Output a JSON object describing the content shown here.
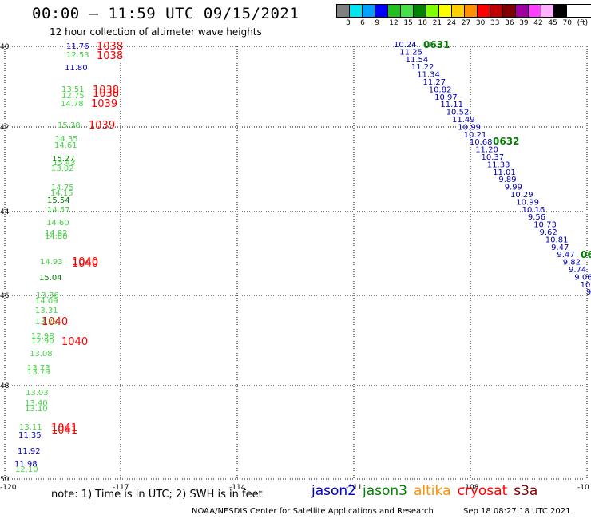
{
  "header": {
    "title": "00:00 – 11:59 UTC 09/15/2021",
    "subtitle": "12 hour collection of altimeter wave heights"
  },
  "legend": {
    "colors": [
      "#808080",
      "#00e5ee",
      "#00a0ff",
      "#0000ff",
      "#20c020",
      "#48e048",
      "#008000",
      "#7fff00",
      "#ffff00",
      "#ffd000",
      "#ff9000",
      "#ff0000",
      "#c00000",
      "#800000",
      "#a000a0",
      "#ff40ff",
      "#ffb0ff",
      "#000000"
    ],
    "labels": [
      "3",
      "6",
      "9",
      "12",
      "15",
      "18",
      "21",
      "24",
      "27",
      "30",
      "33",
      "36",
      "39",
      "42",
      "45",
      "70",
      "(ft)"
    ]
  },
  "map": {
    "lon_ticks": [
      "-120",
      "-117",
      "-114",
      "-111",
      "-108",
      "-10"
    ],
    "lat_ticks": [
      "40",
      "42",
      "44",
      "46",
      "48",
      "50"
    ],
    "status_colors": {
      "high_pressure": "#ff0000",
      "swh_low": "#0000c0",
      "swh_mid": "#46d246",
      "swh_time": "#008000"
    }
  },
  "left_track": [
    {
      "t": "11.76",
      "c": "#0000c0"
    },
    {
      "t": "12.53",
      "c": "#46d246"
    },
    {
      "t": "11.80",
      "c": "#0000c0"
    },
    {
      "t": "13.51",
      "c": "#46d246"
    },
    {
      "t": "12.75",
      "c": "#46d246"
    },
    {
      "t": "14.78",
      "c": "#46d246"
    },
    {
      "t": "15.38",
      "c": "#46d246"
    },
    {
      "t": "14.35",
      "c": "#46d246"
    },
    {
      "t": "14.61",
      "c": "#46d246"
    },
    {
      "t": "15.27",
      "c": "#008000"
    },
    {
      "t": "15.43",
      "c": "#46d246"
    },
    {
      "t": "13.02",
      "c": "#46d246"
    },
    {
      "t": "14.75",
      "c": "#46d246"
    },
    {
      "t": "14.15",
      "c": "#46d246"
    },
    {
      "t": "15.54",
      "c": "#008000"
    },
    {
      "t": "14.57",
      "c": "#46d246"
    },
    {
      "t": "14.60",
      "c": "#46d246"
    },
    {
      "t": "14.82",
      "c": "#46d246"
    },
    {
      "t": "14.88",
      "c": "#46d246"
    },
    {
      "t": "14.93",
      "c": "#46d246"
    },
    {
      "t": "15.04",
      "c": "#008000"
    },
    {
      "t": "13.36",
      "c": "#46d246"
    },
    {
      "t": "14.09",
      "c": "#46d246"
    },
    {
      "t": "13.31",
      "c": "#46d246"
    },
    {
      "t": "13.28",
      "c": "#46d246"
    },
    {
      "t": "12.98",
      "c": "#46d246"
    },
    {
      "t": "12.90",
      "c": "#46d246"
    },
    {
      "t": "13.08",
      "c": "#46d246"
    },
    {
      "t": "13.73",
      "c": "#46d246"
    },
    {
      "t": "13.79",
      "c": "#46d246"
    },
    {
      "t": "13.03",
      "c": "#46d246"
    },
    {
      "t": "13.40",
      "c": "#46d246"
    },
    {
      "t": "13.10",
      "c": "#46d246"
    },
    {
      "t": "13.11",
      "c": "#46d246"
    },
    {
      "t": "11.35",
      "c": "#0000c0"
    },
    {
      "t": "11.92",
      "c": "#0000c0"
    },
    {
      "t": "11.98",
      "c": "#0000c0"
    },
    {
      "t": "12.10",
      "c": "#46d246"
    }
  ],
  "pressure_labels": [
    "1038",
    "1038",
    "1038",
    "1038",
    "1039",
    "1039",
    "1040",
    "1040",
    "1040",
    "1040",
    "1041",
    "1041"
  ],
  "right_track": [
    "10.24",
    "11.25",
    "11.54",
    "11.22",
    "11.34",
    "11.27",
    "10.82",
    "10.97",
    "11.11",
    "10.52",
    "11.49",
    "10.99",
    "10.21",
    "10.68",
    "11.20",
    "10.37",
    "11.33",
    "11.01",
    "9.89",
    "9.99",
    "10.29",
    "10.99",
    "10.16",
    "9.56",
    "10.73",
    "9.62",
    "10.81",
    "9.47",
    "9.47",
    "9.82",
    "9.74",
    "9.06",
    "10.5",
    "9."
  ],
  "right_times": [
    "0631",
    "0632",
    "06"
  ],
  "footer": {
    "note": "note: 1) Time is in UTC; 2) SWH is in feet",
    "satellites": [
      {
        "name": "jason2",
        "color": "#0000c0"
      },
      {
        "name": "jason3",
        "color": "#008000"
      },
      {
        "name": "altika",
        "color": "#ff9000"
      },
      {
        "name": "cryosat",
        "color": "#ff0000"
      },
      {
        "name": "s3a",
        "color": "#800000"
      }
    ],
    "credit": "NOAA/NESDIS Center for Satellite Applications and Research",
    "timestamp": "Sep 18 08:27:18 UTC 2021"
  }
}
